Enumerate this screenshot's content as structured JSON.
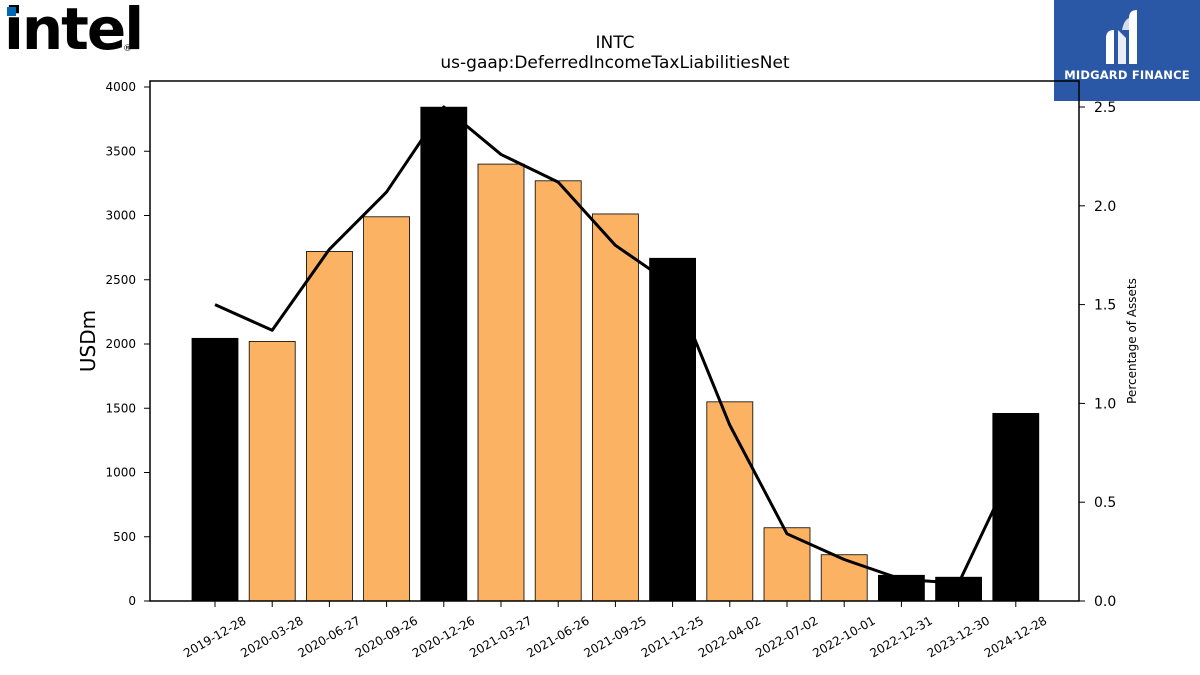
{
  "company_logo": {
    "text": "intel",
    "registered_mark": "®",
    "dot_color": "#0068b5"
  },
  "brand_logo": {
    "text": "MIDGARD FINANCE",
    "background": "#2a57a6"
  },
  "chart_data": {
    "type": "bar",
    "title": "INTC",
    "subtitle": "us-gaap:DeferredIncomeTaxLiabilitiesNet",
    "ylabel": "USDm",
    "y2label": "Percentage of Assets",
    "ylim": [
      0,
      4000
    ],
    "y2lim": [
      0,
      2.5
    ],
    "yticks": [
      "0",
      "500",
      "1000",
      "1500",
      "2000",
      "2500",
      "3000",
      "3500",
      "4000"
    ],
    "y2ticks": [
      "0.0",
      "0.5",
      "1.0",
      "1.5",
      "2.0",
      "2.5"
    ],
    "categories": [
      "2019-12-28",
      "2020-03-28",
      "2020-06-27",
      "2020-09-26",
      "2020-12-26",
      "2021-03-27",
      "2021-06-26",
      "2021-09-25",
      "2021-12-25",
      "2022-04-02",
      "2022-07-02",
      "2022-10-01",
      "2022-12-31",
      "2023-12-30",
      "2024-12-28"
    ],
    "values": [
      2044,
      2020,
      2720,
      2990,
      3843,
      3400,
      3270,
      3012,
      2667,
      1550,
      570,
      360,
      200,
      185,
      1460
    ],
    "bar_colors": [
      "#000000",
      "#fbb262",
      "#fbb262",
      "#fbb262",
      "#000000",
      "#fbb262",
      "#fbb262",
      "#fbb262",
      "#000000",
      "#fbb262",
      "#fbb262",
      "#fbb262",
      "#000000",
      "#000000",
      "#000000"
    ],
    "line_series": {
      "axis": "right",
      "color": "#000000",
      "values": [
        1.5,
        1.37,
        1.78,
        2.07,
        2.5,
        2.26,
        2.12,
        1.8,
        1.6,
        0.89,
        0.34,
        0.21,
        0.11,
        0.09,
        0.7
      ]
    },
    "grid": false,
    "legend": "none"
  }
}
